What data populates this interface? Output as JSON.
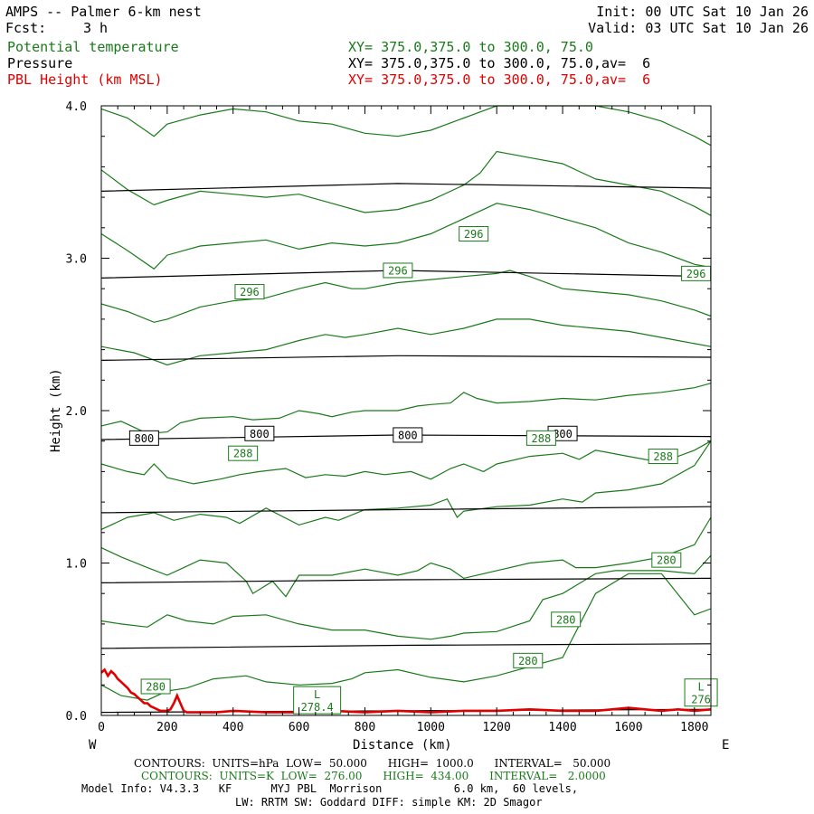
{
  "header": {
    "title": "AMPS -- Palmer 6-km nest",
    "fcst_label": "Fcst:",
    "fcst_value": "3 h",
    "init": "Init: 00 UTC Sat 10 Jan 26",
    "valid": "Valid: 03 UTC Sat 10 Jan 26",
    "fields": [
      {
        "name": "Potential temperature",
        "xy": "XY= 375.0,375.0 to 300.0, 75.0",
        "color": "#1a7a1a"
      },
      {
        "name": "Pressure",
        "xy": "XY= 375.0,375.0 to 300.0, 75.0,av=  6",
        "color": "#000000"
      },
      {
        "name": "PBL Height (km MSL)",
        "xy": "XY= 375.0,375.0 to 300.0, 75.0,av=  6",
        "color": "#e00000"
      }
    ]
  },
  "chart_data": {
    "type": "line",
    "xlabel": "Distance (km)",
    "ylabel": "Height (km)",
    "xlim": [
      0,
      1850
    ],
    "ylim": [
      0,
      4.0
    ],
    "x_ticks": [
      0,
      200,
      400,
      600,
      800,
      1000,
      1200,
      1400,
      1600,
      1800
    ],
    "y_ticks": [
      0.0,
      1.0,
      2.0,
      3.0,
      4.0
    ],
    "x_tick_labels": [
      "0",
      "200",
      "400",
      "600",
      "800",
      "1000",
      "1200",
      "1400",
      "1600",
      "1800"
    ],
    "y_tick_labels": [
      "0.0",
      "1.0",
      "2.0",
      "3.0",
      "4.0"
    ],
    "left_end_label": "W",
    "right_end_label": "E",
    "pressure_lines": [
      {
        "x": [
          0,
          900,
          1850
        ],
        "y": [
          0.02,
          0.03,
          0.04
        ]
      },
      {
        "x": [
          0,
          900,
          1850
        ],
        "y": [
          0.44,
          0.46,
          0.47
        ]
      },
      {
        "x": [
          0,
          900,
          1850
        ],
        "y": [
          0.87,
          0.89,
          0.9
        ]
      },
      {
        "x": [
          0,
          900,
          1850
        ],
        "y": [
          1.33,
          1.35,
          1.37
        ]
      },
      {
        "x": [
          0,
          900,
          1850
        ],
        "y": [
          1.81,
          1.84,
          1.83
        ]
      },
      {
        "x": [
          0,
          900,
          1850
        ],
        "y": [
          2.33,
          2.36,
          2.35
        ]
      },
      {
        "x": [
          0,
          900,
          1850
        ],
        "y": [
          2.87,
          2.92,
          2.88
        ]
      },
      {
        "x": [
          0,
          900,
          1850
        ],
        "y": [
          3.44,
          3.49,
          3.46
        ]
      }
    ],
    "pressure_labels": [
      {
        "text": "800",
        "x": 130,
        "y": 1.82
      },
      {
        "text": "800",
        "x": 480,
        "y": 1.85
      },
      {
        "text": "800",
        "x": 930,
        "y": 1.84
      },
      {
        "text": "800",
        "x": 1400,
        "y": 1.85
      }
    ],
    "theta_lines": [
      {
        "x": [
          0,
          60,
          140,
          200,
          260,
          340,
          440,
          500,
          600,
          700,
          760,
          800,
          900,
          1000,
          1100,
          1200,
          1300,
          1400,
          1500,
          1600,
          1700,
          1800,
          1850
        ],
        "y": [
          0.2,
          0.13,
          0.1,
          0.16,
          0.18,
          0.24,
          0.26,
          0.22,
          0.2,
          0.21,
          0.24,
          0.28,
          0.3,
          0.25,
          0.22,
          0.26,
          0.32,
          0.38,
          0.8,
          0.93,
          0.93,
          0.66,
          0.7
        ]
      },
      {
        "x": [
          0,
          60,
          140,
          200,
          260,
          340,
          400,
          500,
          600,
          700,
          800,
          900,
          1000,
          1060,
          1100,
          1200,
          1300,
          1340,
          1400,
          1500,
          1560,
          1600,
          1700,
          1800,
          1850
        ],
        "y": [
          0.62,
          0.6,
          0.58,
          0.66,
          0.62,
          0.6,
          0.65,
          0.66,
          0.6,
          0.56,
          0.56,
          0.52,
          0.5,
          0.52,
          0.54,
          0.55,
          0.62,
          0.76,
          0.8,
          0.93,
          0.95,
          0.95,
          0.95,
          0.93,
          1.05
        ]
      },
      {
        "x": [
          0,
          60,
          140,
          200,
          260,
          300,
          380,
          440,
          460,
          520,
          560,
          600,
          700,
          800,
          900,
          960,
          1000,
          1060,
          1100,
          1200,
          1300,
          1400,
          1440,
          1500,
          1600,
          1700,
          1800,
          1850
        ],
        "y": [
          1.1,
          1.04,
          0.97,
          0.92,
          0.98,
          1.02,
          1.0,
          0.88,
          0.8,
          0.88,
          0.78,
          0.92,
          0.92,
          0.96,
          0.92,
          0.95,
          1.0,
          0.96,
          0.9,
          0.95,
          1.0,
          1.02,
          0.97,
          0.97,
          1.0,
          1.04,
          1.12,
          1.3
        ]
      },
      {
        "x": [
          0,
          80,
          160,
          220,
          300,
          380,
          420,
          500,
          600,
          680,
          720,
          800,
          900,
          1000,
          1050,
          1080,
          1100,
          1200,
          1300,
          1400,
          1460,
          1500,
          1600,
          1700,
          1800,
          1850
        ],
        "y": [
          1.22,
          1.3,
          1.33,
          1.28,
          1.32,
          1.3,
          1.26,
          1.36,
          1.25,
          1.3,
          1.28,
          1.35,
          1.36,
          1.38,
          1.42,
          1.3,
          1.34,
          1.37,
          1.38,
          1.42,
          1.4,
          1.46,
          1.48,
          1.52,
          1.64,
          1.8
        ]
      },
      {
        "x": [
          0,
          80,
          130,
          160,
          200,
          280,
          360,
          420,
          480,
          560,
          620,
          680,
          740,
          800,
          860,
          940,
          1000,
          1060,
          1100,
          1160,
          1200,
          1300,
          1400,
          1450,
          1500,
          1600,
          1700,
          1800,
          1850
        ],
        "y": [
          1.65,
          1.6,
          1.58,
          1.65,
          1.56,
          1.52,
          1.55,
          1.58,
          1.6,
          1.62,
          1.56,
          1.58,
          1.57,
          1.6,
          1.58,
          1.6,
          1.55,
          1.62,
          1.65,
          1.6,
          1.65,
          1.7,
          1.72,
          1.68,
          1.74,
          1.7,
          1.66,
          1.74,
          1.8
        ]
      },
      {
        "x": [
          0,
          60,
          140,
          200,
          240,
          300,
          400,
          460,
          540,
          600,
          660,
          700,
          760,
          800,
          900,
          960,
          1000,
          1060,
          1100,
          1140,
          1200,
          1300,
          1400,
          1500,
          1600,
          1700,
          1800,
          1850
        ],
        "y": [
          1.9,
          1.93,
          1.85,
          1.86,
          1.92,
          1.95,
          1.96,
          1.94,
          1.95,
          2.0,
          1.98,
          1.96,
          1.99,
          2.0,
          2.0,
          2.03,
          2.04,
          2.05,
          2.12,
          2.08,
          2.05,
          2.06,
          2.08,
          2.07,
          2.1,
          2.12,
          2.15,
          2.18
        ]
      },
      {
        "x": [
          0,
          100,
          200,
          300,
          400,
          500,
          600,
          680,
          740,
          800,
          900,
          1000,
          1100,
          1200,
          1300,
          1400,
          1500,
          1600,
          1700,
          1800,
          1850
        ],
        "y": [
          2.42,
          2.38,
          2.3,
          2.36,
          2.38,
          2.4,
          2.46,
          2.5,
          2.48,
          2.5,
          2.54,
          2.5,
          2.54,
          2.6,
          2.6,
          2.56,
          2.54,
          2.52,
          2.48,
          2.44,
          2.42
        ]
      },
      {
        "x": [
          0,
          80,
          160,
          200,
          300,
          400,
          500,
          600,
          680,
          760,
          800,
          900,
          1000,
          1100,
          1200,
          1240,
          1300,
          1400,
          1500,
          1600,
          1700,
          1800,
          1850
        ],
        "y": [
          2.7,
          2.65,
          2.58,
          2.6,
          2.68,
          2.72,
          2.74,
          2.8,
          2.84,
          2.8,
          2.8,
          2.84,
          2.86,
          2.88,
          2.9,
          2.92,
          2.88,
          2.8,
          2.78,
          2.76,
          2.72,
          2.66,
          2.62
        ]
      },
      {
        "x": [
          0,
          80,
          160,
          200,
          300,
          400,
          500,
          600,
          700,
          800,
          900,
          1000,
          1100,
          1200,
          1250,
          1300,
          1400,
          1500,
          1600,
          1700,
          1800,
          1850
        ],
        "y": [
          3.16,
          3.05,
          2.93,
          3.02,
          3.08,
          3.1,
          3.12,
          3.06,
          3.1,
          3.08,
          3.1,
          3.16,
          3.26,
          3.36,
          3.34,
          3.32,
          3.26,
          3.2,
          3.1,
          3.04,
          2.96,
          2.94
        ]
      },
      {
        "x": [
          0,
          80,
          160,
          200,
          300,
          400,
          500,
          600,
          700,
          800,
          900,
          1000,
          1100,
          1150,
          1200,
          1300,
          1400,
          1500,
          1600,
          1700,
          1800,
          1850
        ],
        "y": [
          3.58,
          3.45,
          3.35,
          3.38,
          3.44,
          3.42,
          3.4,
          3.42,
          3.36,
          3.3,
          3.32,
          3.38,
          3.48,
          3.56,
          3.7,
          3.66,
          3.62,
          3.52,
          3.48,
          3.44,
          3.34,
          3.28
        ]
      },
      {
        "x": [
          0,
          80,
          160,
          200,
          300,
          400,
          500,
          600,
          700,
          800,
          900,
          1000,
          1100,
          1200,
          1250,
          1300,
          1400,
          1500,
          1600,
          1700,
          1800,
          1850
        ],
        "y": [
          3.98,
          3.92,
          3.8,
          3.88,
          3.94,
          3.98,
          3.96,
          3.9,
          3.88,
          3.82,
          3.8,
          3.84,
          3.92,
          4.0,
          4.0,
          4.0,
          4.0,
          4.0,
          3.96,
          3.9,
          3.8,
          3.74
        ]
      }
    ],
    "theta_labels": [
      {
        "text": "296",
        "x": 1130,
        "y": 3.16
      },
      {
        "text": "296",
        "x": 900,
        "y": 2.92
      },
      {
        "text": "296",
        "x": 1805,
        "y": 2.9
      },
      {
        "text": "296",
        "x": 450,
        "y": 2.78
      },
      {
        "text": "288",
        "x": 430,
        "y": 1.72
      },
      {
        "text": "288",
        "x": 1335,
        "y": 1.82
      },
      {
        "text": "288",
        "x": 1705,
        "y": 1.7
      },
      {
        "text": "280",
        "x": 1715,
        "y": 1.02
      },
      {
        "text": "280",
        "x": 1410,
        "y": 0.63
      },
      {
        "text": "280",
        "x": 1295,
        "y": 0.36
      },
      {
        "text": "280",
        "x": 165,
        "y": 0.19
      }
    ],
    "low_markers": [
      {
        "letter": "L",
        "value": "278.4",
        "x": 655,
        "y": 0.1
      },
      {
        "letter": "L",
        "value": "276",
        "x": 1820,
        "y": 0.15
      }
    ],
    "pbl_height": {
      "x": [
        0,
        10,
        20,
        30,
        40,
        50,
        60,
        70,
        80,
        90,
        100,
        110,
        120,
        130,
        140,
        150,
        160,
        170,
        180,
        190,
        200,
        210,
        220,
        230,
        240,
        250,
        260,
        280,
        300,
        350,
        400,
        500,
        600,
        700,
        800,
        900,
        1000,
        1100,
        1200,
        1300,
        1400,
        1500,
        1550,
        1600,
        1650,
        1700,
        1750,
        1800,
        1850
      ],
      "y": [
        0.28,
        0.3,
        0.26,
        0.29,
        0.27,
        0.24,
        0.22,
        0.2,
        0.18,
        0.15,
        0.14,
        0.12,
        0.1,
        0.08,
        0.08,
        0.06,
        0.05,
        0.04,
        0.03,
        0.03,
        0.03,
        0.04,
        0.08,
        0.13,
        0.08,
        0.03,
        0.02,
        0.02,
        0.02,
        0.02,
        0.03,
        0.02,
        0.02,
        0.03,
        0.02,
        0.03,
        0.02,
        0.03,
        0.03,
        0.04,
        0.03,
        0.03,
        0.04,
        0.05,
        0.04,
        0.03,
        0.04,
        0.03,
        0.04
      ],
      "color": "#e00000"
    }
  },
  "footer": {
    "contours_p": "CONTOURS:  UNITS=hPa  LOW=  50.000      HIGH=  1000.0      INTERVAL=   50.000",
    "contours_t": "CONTOURS:  UNITS=K  LOW=  276.00      HIGH=  434.00      INTERVAL=   2.0000",
    "model_info": "Model Info: V4.3.3   KF      MYJ PBL  Morrison           6.0 km,  60 levels,",
    "model_info2": "LW: RRTM SW: Goddard DIFF: simple KM: 2D Smagor"
  }
}
